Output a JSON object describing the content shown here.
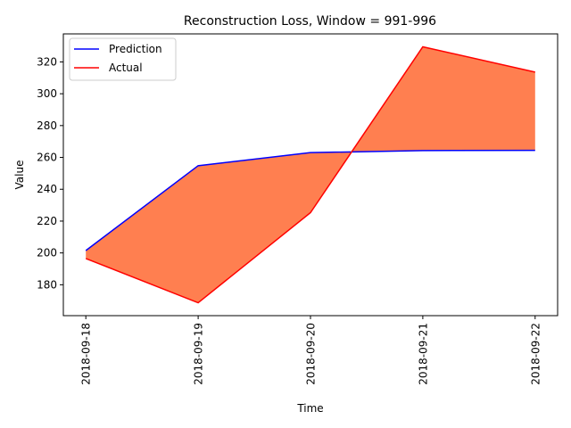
{
  "chart_data": {
    "type": "line",
    "title": "Reconstruction Loss, Window = 991-996",
    "xlabel": "Time",
    "ylabel": "Value",
    "categories": [
      "2018-09-18",
      "2018-09-19",
      "2018-09-20",
      "2018-09-21",
      "2018-09-22"
    ],
    "series": [
      {
        "name": "Prediction",
        "color": "#0000ff",
        "values": [
          201.5,
          254.8,
          263.0,
          264.3,
          264.4
        ]
      },
      {
        "name": "Actual",
        "color": "#ff0000",
        "values": [
          196.5,
          168.7,
          225.3,
          329.5,
          313.6
        ]
      }
    ],
    "fill_between": {
      "color": "#ff7f50",
      "between": [
        "Prediction",
        "Actual"
      ]
    },
    "ylim": [
      160.6,
      337.6
    ],
    "yticks": [
      180,
      200,
      220,
      240,
      260,
      280,
      300,
      320
    ],
    "grid": false,
    "legend": "top-left"
  }
}
